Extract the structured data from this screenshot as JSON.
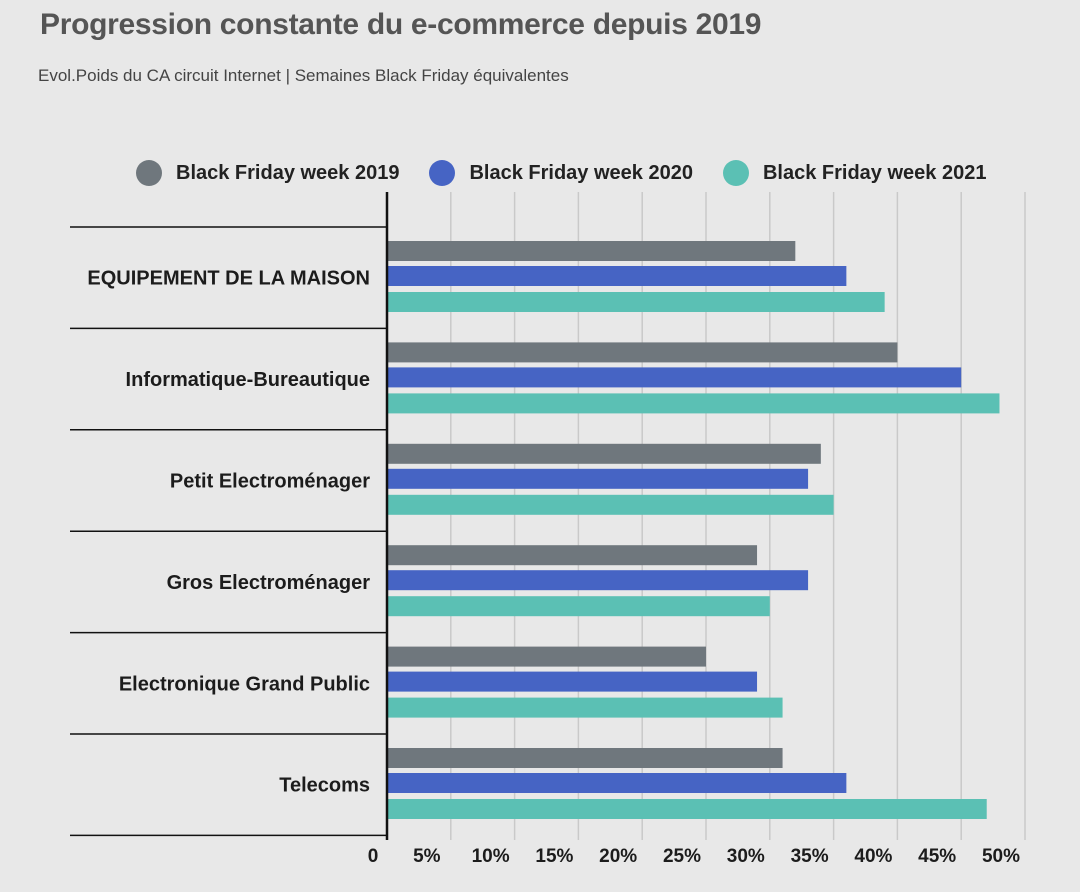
{
  "header": {
    "title": "Progression constante du e-commerce depuis 2019",
    "subtitle": "Evol.Poids du CA circuit Internet | Semaines Black Friday équivalentes"
  },
  "colors": {
    "series_2019": "#6f777d",
    "series_2020": "#4664c4",
    "series_2021": "#5bc0b4",
    "grid": "#c9c9c9",
    "axis": "#111111"
  },
  "chart_data": {
    "type": "bar",
    "orientation": "horizontal",
    "title": "Progression constante du e-commerce depuis 2019",
    "subtitle": "Evol.Poids du CA circuit Internet | Semaines Black Friday équivalentes",
    "categories": [
      "EQUIPEMENT DE LA MAISON",
      "Informatique-Bureautique",
      "Petit Electroménager",
      "Gros Electroménager",
      "Electronique Grand Public",
      "Telecoms"
    ],
    "series": [
      {
        "name": "Black Friday week 2019",
        "values": [
          32,
          40,
          34,
          29,
          25,
          31
        ]
      },
      {
        "name": "Black Friday week 2020",
        "values": [
          36,
          45,
          33,
          33,
          29,
          36
        ]
      },
      {
        "name": "Black Friday week 2021",
        "values": [
          39,
          48,
          35,
          30,
          31,
          47
        ]
      }
    ],
    "xlim": [
      0,
      50
    ],
    "xticks": [
      0,
      5,
      10,
      15,
      20,
      25,
      30,
      35,
      40,
      45,
      50
    ],
    "xtick_labels": [
      "0",
      "5%",
      "10%",
      "15%",
      "20%",
      "25%",
      "30%",
      "35%",
      "40%",
      "45%",
      "50%"
    ],
    "legend_position": "top",
    "grid": true
  }
}
